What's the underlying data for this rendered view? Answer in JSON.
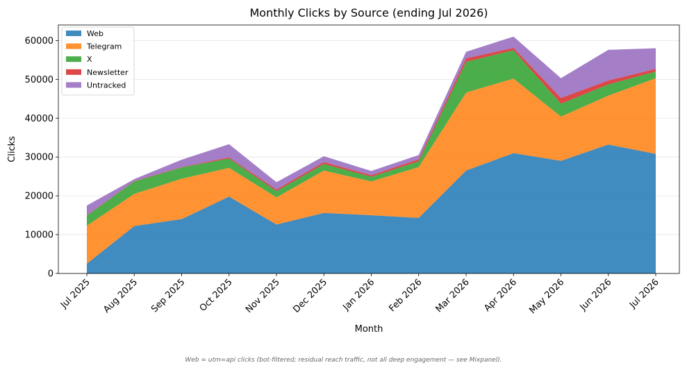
{
  "chart_data": {
    "type": "area",
    "stacked": true,
    "title": "Monthly Clicks by Source (ending Jul 2026)",
    "xlabel": "Month",
    "ylabel": "Clicks",
    "ylim": [
      0,
      64000
    ],
    "yticks": [
      0,
      10000,
      20000,
      30000,
      40000,
      50000,
      60000
    ],
    "grid": "horizontal",
    "legend_position": "top-left",
    "categories": [
      "Jul 2025",
      "Aug 2025",
      "Sep 2025",
      "Oct 2025",
      "Nov 2025",
      "Dec 2025",
      "Jan 2026",
      "Feb 2026",
      "Mar 2026",
      "Apr 2026",
      "May 2026",
      "Jun 2026",
      "Jul 2026"
    ],
    "series": [
      {
        "name": "Web",
        "color": "#1f77b4",
        "values": [
          2500,
          12200,
          14000,
          19800,
          12600,
          15600,
          15000,
          14300,
          26500,
          31000,
          29000,
          33200,
          30800
        ]
      },
      {
        "name": "Telegram",
        "color": "#ff7f0e",
        "values": [
          9800,
          8300,
          10400,
          7400,
          7000,
          10900,
          8700,
          13100,
          20100,
          19200,
          11400,
          12600,
          19500
        ]
      },
      {
        "name": "X",
        "color": "#2ca02c",
        "values": [
          2600,
          3200,
          2900,
          2400,
          1600,
          1700,
          1200,
          1500,
          7900,
          7300,
          3300,
          2900,
          1700
        ]
      },
      {
        "name": "Newsletter",
        "color": "#d62728",
        "values": [
          100,
          100,
          100,
          300,
          400,
          500,
          400,
          500,
          900,
          600,
          1500,
          1000,
          700
        ]
      },
      {
        "name": "Untracked",
        "color": "#9467bd",
        "values": [
          2500,
          500,
          1900,
          3400,
          1900,
          1500,
          1100,
          1100,
          1700,
          2900,
          5100,
          7900,
          5300
        ]
      }
    ],
    "footnote": "Web = utm=api clicks (bot-filtered; residual reach traffic, not all deep engagement — see Mixpanel)."
  }
}
